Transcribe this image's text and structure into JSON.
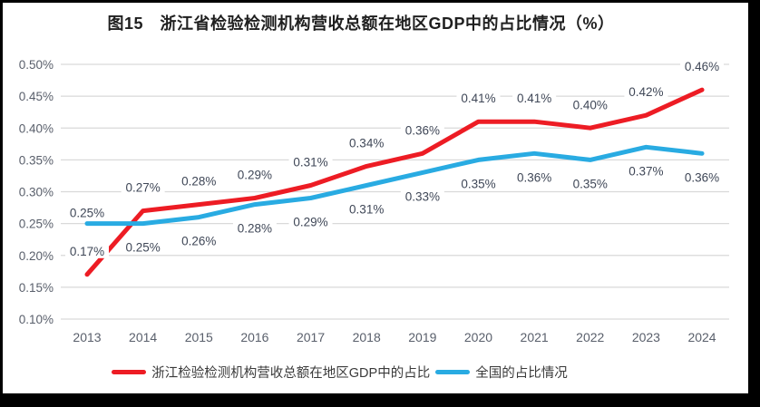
{
  "title": "图15　浙江省检验检测机构营收总额在地区GDP中的占比情况（%）",
  "colors": {
    "frame": "#000000",
    "canvas": "#ffffff",
    "gridline": "#d9d9d9",
    "tick_text": "#595f6b",
    "data_label_text": "#3f4757",
    "zhejiang_line": "#ed1c24",
    "national_line": "#29abe2"
  },
  "chart_data": {
    "type": "line",
    "title": "图15　浙江省检验检测机构营收总额在地区GDP中的占比情况（%）",
    "categories": [
      "2013",
      "2014",
      "2015",
      "2016",
      "2017",
      "2018",
      "2019",
      "2020",
      "2021",
      "2022",
      "2023",
      "2024"
    ],
    "series": [
      {
        "name": "浙江检验检测机构营收总额在地区GDP中的占比",
        "color": "#ed1c24",
        "values": [
          0.17,
          0.27,
          0.28,
          0.29,
          0.31,
          0.34,
          0.36,
          0.41,
          0.41,
          0.4,
          0.42,
          0.46
        ],
        "labels": [
          "0.17%",
          "0.27%",
          "0.28%",
          "0.29%",
          "0.31%",
          "0.34%",
          "0.36%",
          "0.41%",
          "0.41%",
          "0.40%",
          "0.42%",
          "0.46%"
        ]
      },
      {
        "name": "全国的占比情况",
        "color": "#29abe2",
        "values": [
          0.25,
          0.25,
          0.26,
          0.28,
          0.29,
          0.31,
          0.33,
          0.35,
          0.36,
          0.35,
          0.37,
          0.36
        ],
        "labels": [
          "0.25%",
          "0.25%",
          "0.26%",
          "0.28%",
          "0.29%",
          "0.31%",
          "0.33%",
          "0.35%",
          "0.36%",
          "0.35%",
          "0.37%",
          "0.36%"
        ]
      }
    ],
    "xlabel": "",
    "ylabel": "",
    "ylim": [
      0.1,
      0.5
    ],
    "ytick_step": 0.05,
    "ytick_labels": [
      "0.10%",
      "0.15%",
      "0.20%",
      "0.25%",
      "0.30%",
      "0.35%",
      "0.40%",
      "0.45%",
      "0.50%"
    ],
    "grid": "horizontal",
    "legend_position": "bottom"
  },
  "legend": {
    "items": [
      {
        "label": "浙江检验检测机构营收总额在地区GDP中的占比",
        "color": "#ed1c24"
      },
      {
        "label": "全国的占比情况",
        "color": "#29abe2"
      }
    ]
  }
}
